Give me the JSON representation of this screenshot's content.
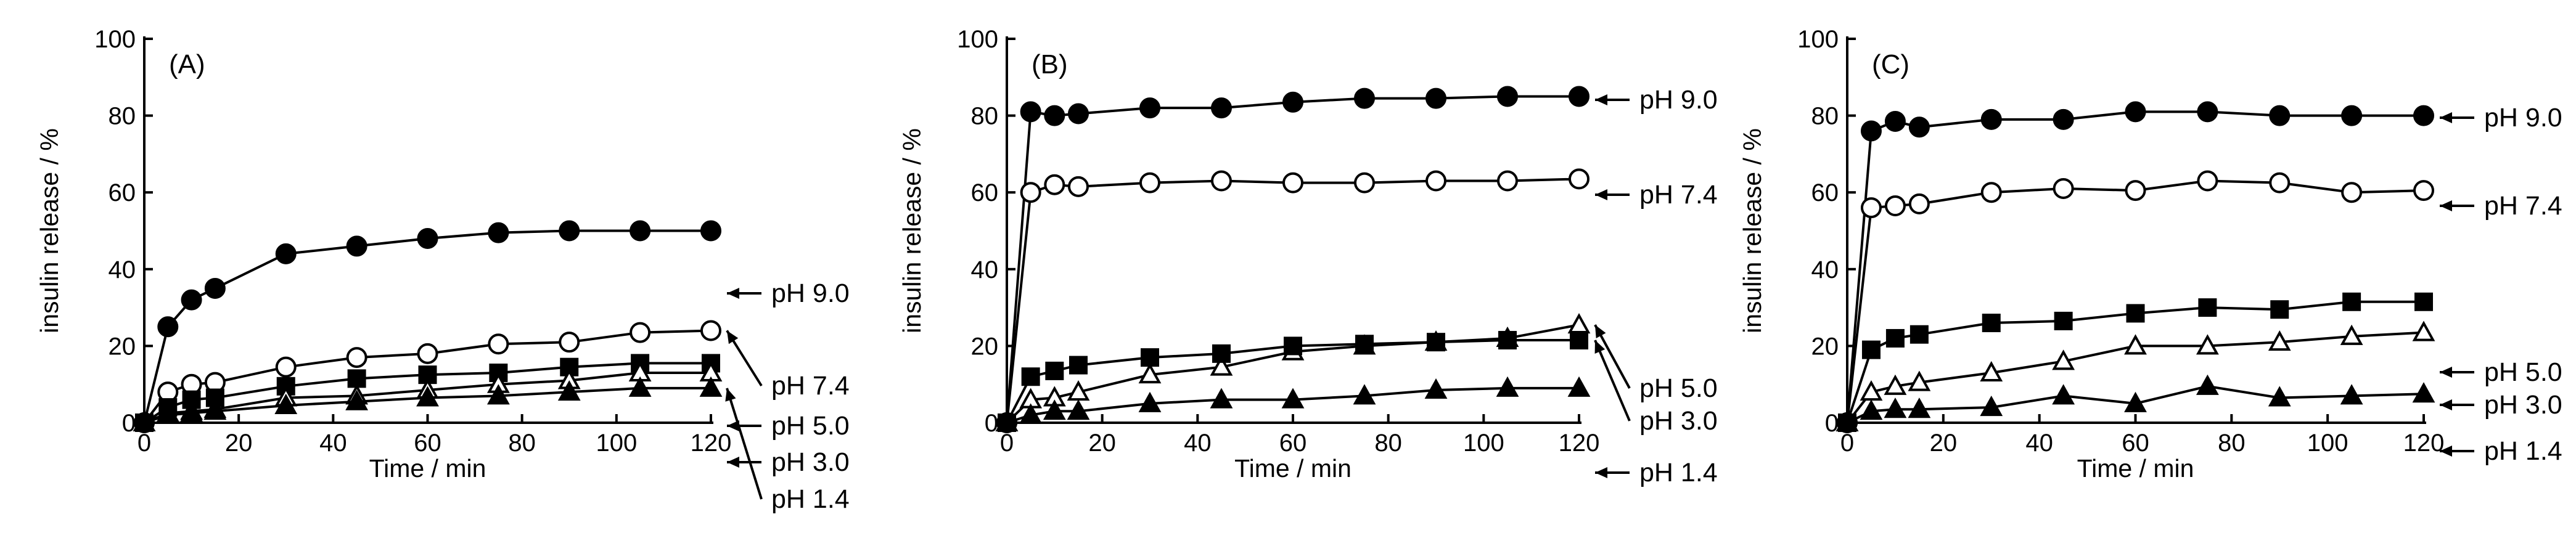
{
  "chart_data": [
    {
      "type": "line",
      "panel_label": "(A)",
      "xlabel": "Time / min",
      "ylabel": "insulin release / %",
      "xlim": [
        0,
        120
      ],
      "ylim": [
        0,
        100
      ],
      "xticks": [
        0,
        20,
        40,
        60,
        80,
        100,
        120
      ],
      "yticks": [
        0,
        20,
        40,
        60,
        80,
        100
      ],
      "series": [
        {
          "name": "pH 9.0",
          "marker": "circle",
          "fill": "filled",
          "x": [
            0,
            5,
            10,
            15,
            30,
            45,
            60,
            75,
            90,
            105,
            120
          ],
          "y": [
            0,
            25,
            32,
            35,
            44,
            46,
            48,
            49.5,
            50,
            50,
            50
          ]
        },
        {
          "name": "pH 7.4",
          "marker": "circle",
          "fill": "open",
          "x": [
            0,
            5,
            10,
            15,
            30,
            45,
            60,
            75,
            90,
            105,
            120
          ],
          "y": [
            0,
            8,
            10,
            10.5,
            14.5,
            17,
            18,
            20.5,
            21,
            23.5,
            24
          ]
        },
        {
          "name": "pH 5.0",
          "marker": "square",
          "fill": "filled",
          "x": [
            0,
            5,
            10,
            15,
            30,
            45,
            60,
            75,
            90,
            105,
            120
          ],
          "y": [
            0,
            4,
            6,
            6.5,
            9.5,
            11.5,
            12.5,
            13,
            14.5,
            15.5,
            15.5
          ]
        },
        {
          "name": "pH 3.0",
          "marker": "triangle",
          "fill": "open",
          "x": [
            0,
            5,
            10,
            15,
            30,
            45,
            60,
            75,
            90,
            105,
            120
          ],
          "y": [
            0,
            2.5,
            3,
            3.5,
            6.5,
            7,
            8.5,
            10,
            11,
            13,
            13
          ]
        },
        {
          "name": "pH 1.4",
          "marker": "triangle",
          "fill": "filled",
          "x": [
            0,
            5,
            10,
            15,
            30,
            45,
            60,
            75,
            90,
            105,
            120
          ],
          "y": [
            0,
            2,
            2.5,
            3,
            4.5,
            5.5,
            6.5,
            7,
            8,
            9,
            9
          ]
        }
      ]
    },
    {
      "type": "line",
      "panel_label": "(B)",
      "xlabel": "Time / min",
      "ylabel": "insulin release / %",
      "xlim": [
        0,
        120
      ],
      "ylim": [
        0,
        100
      ],
      "xticks": [
        0,
        20,
        40,
        60,
        80,
        100,
        120
      ],
      "yticks": [
        0,
        20,
        40,
        60,
        80,
        100
      ],
      "series": [
        {
          "name": "pH 9.0",
          "marker": "circle",
          "fill": "filled",
          "x": [
            0,
            5,
            10,
            15,
            30,
            45,
            60,
            75,
            90,
            105,
            120
          ],
          "y": [
            0,
            81,
            80,
            80.5,
            82,
            82,
            83.5,
            84.5,
            84.5,
            85,
            85
          ]
        },
        {
          "name": "pH 7.4",
          "marker": "circle",
          "fill": "open",
          "x": [
            0,
            5,
            10,
            15,
            30,
            45,
            60,
            75,
            90,
            105,
            120
          ],
          "y": [
            0,
            60,
            62,
            61.5,
            62.5,
            63,
            62.5,
            62.5,
            63,
            63,
            63.5
          ]
        },
        {
          "name": "pH 5.0",
          "marker": "triangle",
          "fill": "open",
          "x": [
            0,
            5,
            10,
            15,
            30,
            45,
            60,
            75,
            90,
            105,
            120
          ],
          "y": [
            0,
            6,
            6.5,
            8,
            12.5,
            14.5,
            18.5,
            20,
            21,
            22,
            25.5
          ]
        },
        {
          "name": "pH 3.0",
          "marker": "square",
          "fill": "filled",
          "x": [
            0,
            5,
            10,
            15,
            30,
            45,
            60,
            75,
            90,
            105,
            120
          ],
          "y": [
            0,
            12,
            13.5,
            15,
            17,
            18,
            20,
            20.5,
            21,
            21.5,
            21.5
          ]
        },
        {
          "name": "pH 1.4",
          "marker": "triangle",
          "fill": "filled",
          "x": [
            0,
            5,
            10,
            15,
            30,
            45,
            60,
            75,
            90,
            105,
            120
          ],
          "y": [
            0,
            2,
            3,
            3,
            5,
            6,
            6,
            7,
            8.5,
            9,
            9
          ]
        }
      ]
    },
    {
      "type": "line",
      "panel_label": "(C)",
      "xlabel": "Time / min",
      "ylabel": "insulin release / %",
      "xlim": [
        0,
        120
      ],
      "ylim": [
        0,
        100
      ],
      "xticks": [
        0,
        20,
        40,
        60,
        80,
        100,
        120
      ],
      "yticks": [
        0,
        20,
        40,
        60,
        80,
        100
      ],
      "series": [
        {
          "name": "pH 9.0",
          "marker": "circle",
          "fill": "filled",
          "x": [
            0,
            5,
            10,
            15,
            30,
            45,
            60,
            75,
            90,
            105,
            120
          ],
          "y": [
            0,
            76,
            78.5,
            77,
            79,
            79,
            81,
            81,
            80,
            80,
            80
          ]
        },
        {
          "name": "pH 7.4",
          "marker": "circle",
          "fill": "open",
          "x": [
            0,
            5,
            10,
            15,
            30,
            45,
            60,
            75,
            90,
            105,
            120
          ],
          "y": [
            0,
            56,
            56.5,
            57,
            60,
            61,
            60.5,
            63,
            62.5,
            60,
            60.5
          ]
        },
        {
          "name": "pH 5.0",
          "marker": "square",
          "fill": "filled",
          "x": [
            0,
            5,
            10,
            15,
            30,
            45,
            60,
            75,
            90,
            105,
            120
          ],
          "y": [
            0,
            19,
            22,
            23,
            26,
            26.5,
            28.5,
            30,
            29.5,
            31.5,
            31.5
          ]
        },
        {
          "name": "pH 3.0",
          "marker": "triangle",
          "fill": "open",
          "x": [
            0,
            5,
            10,
            15,
            30,
            45,
            60,
            75,
            90,
            105,
            120
          ],
          "y": [
            0,
            8,
            9.5,
            10.5,
            13,
            16,
            20,
            20,
            21,
            22.5,
            23.5
          ]
        },
        {
          "name": "pH 1.4",
          "marker": "triangle",
          "fill": "filled",
          "x": [
            0,
            5,
            10,
            15,
            30,
            45,
            60,
            75,
            90,
            105,
            120
          ],
          "y": [
            0,
            3,
            3.5,
            3.5,
            4,
            7,
            5,
            9.5,
            6.5,
            7,
            7.5
          ]
        }
      ]
    }
  ]
}
